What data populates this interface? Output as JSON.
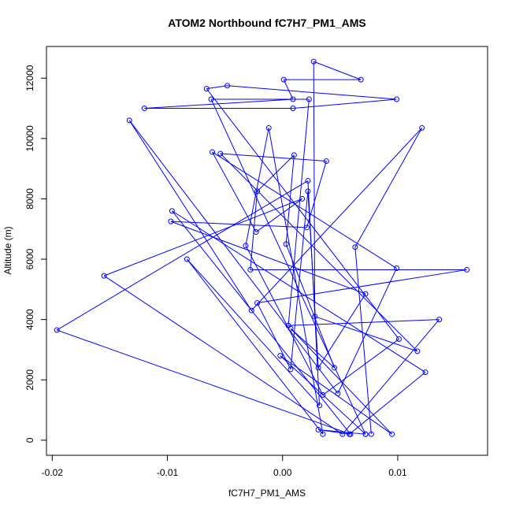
{
  "chart_data": {
    "type": "line",
    "title": "ATOM2 Northbound fC7H7_PM1_AMS",
    "xlabel": "fC7H7_PM1_AMS",
    "ylabel": "Altitude (m)",
    "xlim": [
      -0.0205,
      0.0178
    ],
    "ylim": [
      -500,
      13050
    ],
    "xticks": [
      {
        "value": -0.02,
        "label": "-0.02"
      },
      {
        "value": -0.01,
        "label": "-0.01"
      },
      {
        "value": 0.0,
        "label": "0.00"
      },
      {
        "value": 0.01,
        "label": "0.01"
      }
    ],
    "yticks": [
      {
        "value": 0,
        "label": "0"
      },
      {
        "value": 2000,
        "label": "2000"
      },
      {
        "value": 4000,
        "label": "4000"
      },
      {
        "value": 6000,
        "label": "6000"
      },
      {
        "value": 8000,
        "label": "8000"
      },
      {
        "value": 10000,
        "label": "10000"
      },
      {
        "value": 12000,
        "label": "12000"
      }
    ],
    "series_color": "#0000ff",
    "marker": "open-circle",
    "points": [
      {
        "x": 0.0077,
        "y": 200
      },
      {
        "x": 0.0063,
        "y": 6400
      },
      {
        "x": 0.0121,
        "y": 10350
      },
      {
        "x": -0.0027,
        "y": 4300
      },
      {
        "x": -0.0133,
        "y": 10600
      },
      {
        "x": 0.0048,
        "y": 1550
      },
      {
        "x": 0.0099,
        "y": 5700
      },
      {
        "x": -0.0061,
        "y": 9550
      },
      {
        "x": -0.0023,
        "y": 6900
      },
      {
        "x": 0.0017,
        "y": 8000
      },
      {
        "x": -0.0155,
        "y": 5450
      },
      {
        "x": 0.0052,
        "y": 200
      },
      {
        "x": 0.0136,
        "y": 4000
      },
      {
        "x": 0.0005,
        "y": 3800
      },
      {
        "x": 0.0023,
        "y": 11300
      },
      {
        "x": -0.0062,
        "y": 11300
      },
      {
        "x": 0.0072,
        "y": 200
      },
      {
        "x": 0.0031,
        "y": 350
      },
      {
        "x": 0.0058,
        "y": 200
      },
      {
        "x": 0.0124,
        "y": 2250
      },
      {
        "x": -0.0096,
        "y": 7600
      },
      {
        "x": 0.0059,
        "y": 200
      },
      {
        "x": -0.0196,
        "y": 3650
      },
      {
        "x": 0.0022,
        "y": 8600
      },
      {
        "x": 0.0032,
        "y": 1150
      },
      {
        "x": -0.0083,
        "y": 6000
      },
      {
        "x": 0.0035,
        "y": 200
      },
      {
        "x": -0.0012,
        "y": 10350
      },
      {
        "x": -0.0032,
        "y": 6450
      },
      {
        "x": 0.0035,
        "y": 1500
      },
      {
        "x": 0.0101,
        "y": 3350
      },
      {
        "x": -0.0066,
        "y": 11650
      },
      {
        "x": -0.0048,
        "y": 11750
      },
      {
        "x": 0.0099,
        "y": 11300
      },
      {
        "x": 0.0009,
        "y": 11000
      },
      {
        "x": -0.012,
        "y": 11000
      },
      {
        "x": 0.0009,
        "y": 11300
      },
      {
        "x": 0.0001,
        "y": 11950
      },
      {
        "x": 0.0068,
        "y": 11950
      },
      {
        "x": 0.0027,
        "y": 12550
      },
      {
        "x": 0.0028,
        "y": 4100
      },
      {
        "x": 0.0117,
        "y": 2950
      },
      {
        "x": -0.0054,
        "y": 9500
      },
      {
        "x": 0.0038,
        "y": 9250
      },
      {
        "x": 0.0021,
        "y": 7050
      },
      {
        "x": -0.0097,
        "y": 7250
      },
      {
        "x": 0.0072,
        "y": 4850
      },
      {
        "x": 0.0031,
        "y": 2400
      },
      {
        "x": 0.0022,
        "y": 8250
      },
      {
        "x": 0.0007,
        "y": 2350
      },
      {
        "x": -0.0022,
        "y": 4550
      },
      {
        "x": 0.016,
        "y": 5650
      },
      {
        "x": -0.0028,
        "y": 5650
      },
      {
        "x": -0.0022,
        "y": 8250
      },
      {
        "x": 0.001,
        "y": 9450
      },
      {
        "x": 0.0003,
        "y": 6500
      },
      {
        "x": 0.0045,
        "y": 2400
      },
      {
        "x": 0.0007,
        "y": 3700
      },
      {
        "x": 0.0095,
        "y": 200
      },
      {
        "x": -0.0002,
        "y": 2800
      },
      {
        "x": 0.0072,
        "y": 200
      }
    ]
  }
}
